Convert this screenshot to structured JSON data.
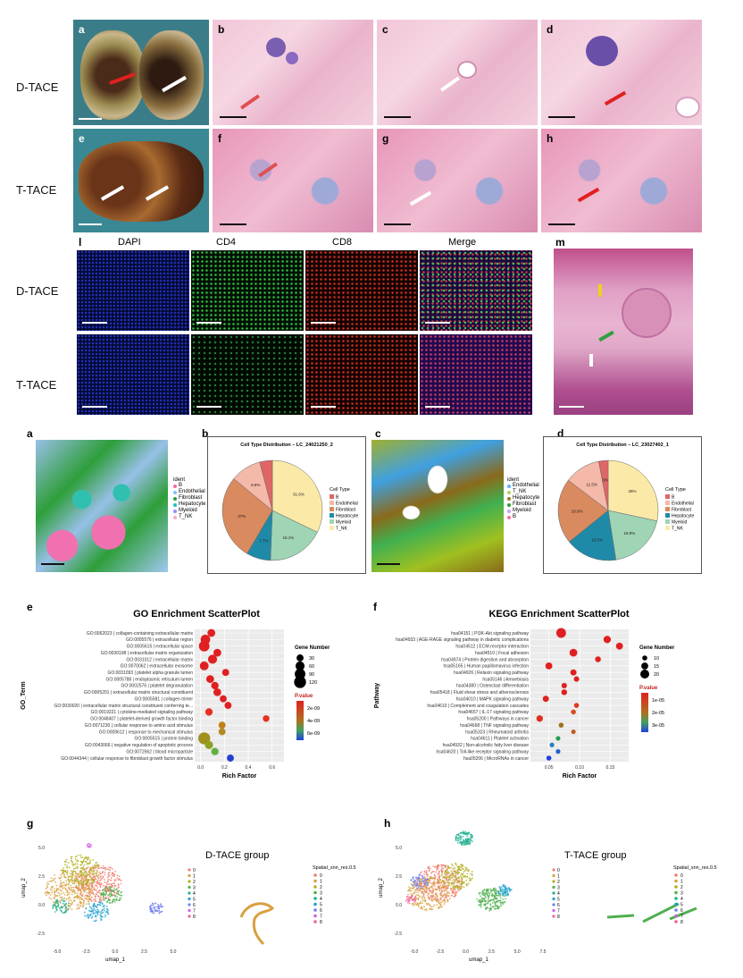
{
  "top_figure": {
    "panels": [
      "a",
      "b",
      "c",
      "d",
      "e",
      "f",
      "g",
      "h"
    ],
    "rows": [
      "D-TACE",
      "T-TACE"
    ],
    "if_panel_label": "l",
    "if_columns": [
      "DAPI",
      "CD4",
      "CD8",
      "Merge"
    ],
    "if_rows": [
      "D-TACE",
      "T-TACE"
    ],
    "m_label": "m"
  },
  "mid_figure": {
    "panel_a": "a",
    "panel_b": "b",
    "panel_c": "c",
    "panel_d": "d",
    "legend_a": {
      "title": "ident",
      "items": [
        "B",
        "Endothelial",
        "Fibroblast",
        "Hepatocyte",
        "Myeloid",
        "T_NK"
      ],
      "colors": [
        "#f06aa0",
        "#7fbfff",
        "#2e9e3a",
        "#26c0b7",
        "#8f8fff",
        "#f7a8c8"
      ]
    },
    "legend_c": {
      "title": "ident",
      "items": [
        "Endothelial",
        "T_NK",
        "Hepatocyte",
        "Fibroblast",
        "Myeloid",
        "B"
      ],
      "colors": [
        "#5fb0ff",
        "#b8d05a",
        "#9b7a2a",
        "#2e9e3a",
        "#c9a0ff",
        "#ff6aa0"
      ]
    }
  },
  "chart_data": [
    {
      "type": "pie",
      "title": "Cell Type Distribution – LC_24021250_2",
      "legend_title": "Cell Type",
      "categories": [
        "B",
        "Endothelial",
        "Fibroblast",
        "Hepatocyte",
        "Myeloid",
        "T_NK"
      ],
      "values": [
        4.0,
        9.8,
        27.0,
        7.7,
        18.1,
        31.6
      ],
      "labels": [
        "",
        "9.8%",
        "27%",
        "7.7%",
        "18.1%",
        "31.6%"
      ],
      "colors": [
        "#e06666",
        "#f4b9a8",
        "#d98a5f",
        "#1f8aa8",
        "#9fd4b5",
        "#fbe9a8"
      ]
    },
    {
      "type": "pie",
      "title": "Cell Type Distribution – LC_23027402_1",
      "legend_title": "Cell Type",
      "categories": [
        "B",
        "Endothelial",
        "Fibroblast",
        "Hepatocyte",
        "Myeloid",
        "T_NK"
      ],
      "values": [
        3.0,
        11.5,
        20.8,
        16.5,
        18.9,
        28.0
      ],
      "labels": [
        "3%",
        "11.5%",
        "20.8%",
        "16.5%",
        "18.9%",
        "28%"
      ],
      "colors": [
        "#e06666",
        "#f4b9a8",
        "#d98a5f",
        "#1f8aa8",
        "#9fd4b5",
        "#fbe9a8"
      ]
    },
    {
      "type": "scatter",
      "panel": "e",
      "title": "GO Enrichment ScatterPlot",
      "xlabel": "Rich Factor",
      "ylabel": "GO_Term",
      "xlim": [
        -0.05,
        0.7
      ],
      "xticks": [
        "0.0",
        "0.2",
        "0.4",
        "0.6"
      ],
      "size_legend_title": "Gene Number",
      "size_legend": [
        30,
        60,
        90,
        120
      ],
      "color_legend_title": "P.value",
      "color_legend": [
        "2e-09",
        "4e-09",
        "6e-09"
      ],
      "terms": [
        "GO:0062023 | collagen-containing extracellular matrix",
        "GO:0005576 | extracellular region",
        "GO:0005615 | extracellular space",
        "GO:0030198 | extracellular matrix organization",
        "GO:0031012 | extracellular matrix",
        "GO:0070062 | extracellular exosome",
        "GO:0031093 | platelet alpha granule lumen",
        "GO:0005788 | endoplasmic reticulum lumen",
        "GO:0002576 | platelet degranulation",
        "GO:0005201 | extracellular matrix structural constituent",
        "GO:0005581 | collagen trimer",
        "GO:0030020 | extracellular matrix structural constituent conferring te...",
        "GO:0019221 | cytokine-mediated signaling pathway",
        "GO:0048407 | platelet-derived growth factor binding",
        "GO:0071230 | cellular response to amino acid stimulus",
        "GO:0009612 | response to mechanical stimulus",
        "GO:0005515 | protein binding",
        "GO:0043066 | negative regulation of apoptotic process",
        "GO:0072562 | blood microparticle",
        "GO:0044344 | cellular response to fibroblast growth factor stimulus"
      ],
      "x": [
        0.09,
        0.04,
        0.03,
        0.14,
        0.1,
        0.03,
        0.21,
        0.08,
        0.12,
        0.14,
        0.19,
        0.23,
        0.07,
        0.55,
        0.18,
        0.18,
        0.03,
        0.07,
        0.12,
        0.25
      ],
      "size": [
        40,
        70,
        90,
        40,
        60,
        55,
        30,
        40,
        35,
        40,
        30,
        30,
        35,
        25,
        30,
        30,
        120,
        45,
        35,
        30
      ],
      "color": [
        "#e02020",
        "#e02020",
        "#e02020",
        "#e02020",
        "#e02020",
        "#e02020",
        "#e02020",
        "#e02020",
        "#e02020",
        "#e02020",
        "#e02020",
        "#e02020",
        "#e83020",
        "#e83020",
        "#c0801a",
        "#b08a20",
        "#a09020",
        "#90a020",
        "#60b040",
        "#2040d0"
      ]
    },
    {
      "type": "scatter",
      "panel": "f",
      "title": "KEGG Enrichment ScatterPlot",
      "xlabel": "Rich Factor",
      "ylabel": "Pathway",
      "xlim": [
        0.02,
        0.18
      ],
      "xticks": [
        "0.05",
        "0.10",
        "0.15"
      ],
      "size_legend_title": "Gene Number",
      "size_legend": [
        10,
        15,
        20
      ],
      "color_legend_title": "P.value",
      "color_legend": [
        "1e-05",
        "2e-05",
        "3e-05"
      ],
      "terms": [
        "hsa04151 | PI3K-Akt signaling pathway",
        "hsa04933 | AGE-RAGE signaling pathway in diabetic complications",
        "hsa04512 | ECM-receptor interaction",
        "hsa04510 | Focal adhesion",
        "hsa04974 | Protein digestion and absorption",
        "hsa05165 | Human papillomavirus infection",
        "hsa04926 | Relaxin signaling pathway",
        "hsa05146 | Amoebiasis",
        "hsa04380 | Osteoclast differentiation",
        "hsa05418 | Fluid shear stress and atherosclerosis",
        "hsa04010 | MAPK signaling pathway",
        "hsa04610 | Complement and coagulation cascades",
        "hsa04657 | IL-17 signaling pathway",
        "hsa05200 | Pathways in cancer",
        "hsa04668 | TNF signaling pathway",
        "hsa05323 | Rheumatoid arthritis",
        "hsa04611 | Platelet activation",
        "hsa04932 | Non-alcoholic fatty liver disease",
        "hsa04620 | Toll-like receptor signaling pathway",
        "hsa05206 | MicroRNAs in cancer"
      ],
      "x": [
        0.07,
        0.145,
        0.165,
        0.09,
        0.13,
        0.05,
        0.09,
        0.095,
        0.075,
        0.075,
        0.045,
        0.095,
        0.09,
        0.035,
        0.07,
        0.09,
        0.065,
        0.055,
        0.065,
        0.05
      ],
      "size": [
        22,
        16,
        15,
        17,
        12,
        15,
        13,
        11,
        11,
        12,
        13,
        10,
        10,
        14,
        10,
        9,
        9,
        9,
        9,
        10
      ],
      "color": [
        "#e02020",
        "#e02020",
        "#e02020",
        "#e02020",
        "#e02020",
        "#e02020",
        "#e02020",
        "#e02020",
        "#e02020",
        "#e02020",
        "#e02020",
        "#e03820",
        "#d05020",
        "#e03020",
        "#a07020",
        "#c06020",
        "#20a050",
        "#2080c0",
        "#2060d0",
        "#2040e0"
      ]
    }
  ],
  "umap": {
    "g": {
      "panel": "g",
      "title": "D-TACE group",
      "xlabel": "umap_1",
      "ylabel": "umap_2",
      "legend_title": "Spatial_snn_res.0.5",
      "xticks": [
        "-5.0",
        "-2.5",
        "0.0",
        "2.5",
        "5.0"
      ],
      "yticks": [
        "5.0",
        "2.5",
        "0.0",
        "-2.5"
      ]
    },
    "h": {
      "panel": "h",
      "title": "T-TACE group",
      "xlabel": "umap_1",
      "ylabel": "umap_2",
      "legend_title": "Spatial_snn_res.0.5",
      "xticks": [
        "-5.0",
        "-2.5",
        "0.0",
        "2.5",
        "5.0",
        "7.5"
      ],
      "yticks": [
        "5.0",
        "2.5",
        "0.0",
        "-2.5"
      ]
    },
    "clusters": [
      "0",
      "1",
      "2",
      "3",
      "4",
      "5",
      "6",
      "7",
      "8"
    ],
    "cluster_colors": [
      "#f08070",
      "#d8a040",
      "#b0b020",
      "#50b050",
      "#20b090",
      "#20a0d0",
      "#7080f0",
      "#d060e0",
      "#f060a0"
    ]
  }
}
